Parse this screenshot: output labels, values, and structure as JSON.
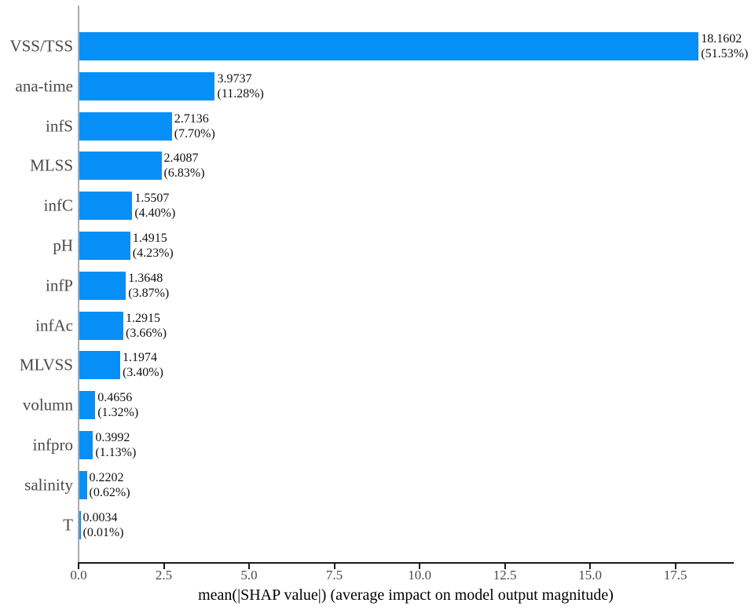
{
  "figure": {
    "background": "#ffffff"
  },
  "chart_data": {
    "type": "bar",
    "orientation": "horizontal",
    "title": "",
    "xlabel": "mean(|SHAP value|) (average impact on model output magnitude)",
    "ylabel": "",
    "categories": [
      "VSS/TSS",
      "ana-time",
      "infS",
      "MLSS",
      "infC",
      "pH",
      "infP",
      "infAc",
      "MLVSS",
      "volumn",
      "infpro",
      "salinity",
      "T"
    ],
    "values": [
      18.1602,
      3.9737,
      2.7136,
      2.4087,
      1.5507,
      1.4915,
      1.3648,
      1.2915,
      1.1974,
      0.4656,
      0.3992,
      0.2202,
      0.0034
    ],
    "value_labels": [
      "18.1602",
      "3.9737",
      "2.7136",
      "2.4087",
      "1.5507",
      "1.4915",
      "1.3648",
      "1.2915",
      "1.1974",
      "0.4656",
      "0.3992",
      "0.2202",
      "0.0034"
    ],
    "percent_labels": [
      "(51.53%)",
      "(11.28%)",
      "(7.70%)",
      "(6.83%)",
      "(4.40%)",
      "(4.23%)",
      "(3.87%)",
      "(3.66%)",
      "(3.40%)",
      "(1.32%)",
      "(1.13%)",
      "(0.62%)",
      "(0.01%)"
    ],
    "x_tick_values": [
      0,
      2.5,
      5,
      7.5,
      10,
      12.5,
      15,
      17.5
    ],
    "x_tick_labels": [
      "0.0",
      "2.5",
      "5.0",
      "7.5",
      "10.0",
      "12.5",
      "15.0",
      "17.5"
    ],
    "xlim": [
      0,
      19.19
    ],
    "grid": false,
    "legend": "none",
    "bar_color": "#078ff8",
    "axis_line_color": "#1a1a1a",
    "left_spine_color": "#ababab",
    "tick_label_color": "#4a4a4a",
    "value_label_color": "#111111"
  }
}
